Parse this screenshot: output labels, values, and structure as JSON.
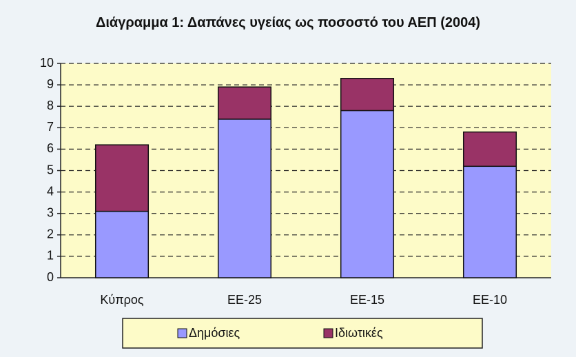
{
  "chart_data": {
    "type": "stacked_bar",
    "title": "Διάγραμμα 1: Δαπάνες υγείας ως ποσοστό του ΑΕΠ (2004)",
    "categories": [
      "Κύπρος",
      "ΕΕ-25",
      "ΕΕ-15",
      "ΕΕ-10"
    ],
    "series": [
      {
        "name": "Δημόσιες",
        "color": "#9999ff",
        "values": [
          3.1,
          7.4,
          7.8,
          5.2
        ]
      },
      {
        "name": "Ιδιωτικές",
        "color": "#993366",
        "values": [
          3.1,
          1.5,
          1.5,
          1.6
        ]
      }
    ],
    "ylim": [
      0,
      10
    ],
    "yticks": [
      0,
      1,
      2,
      3,
      4,
      5,
      6,
      7,
      8,
      9,
      10
    ],
    "grid": true,
    "legend": "bottom"
  }
}
